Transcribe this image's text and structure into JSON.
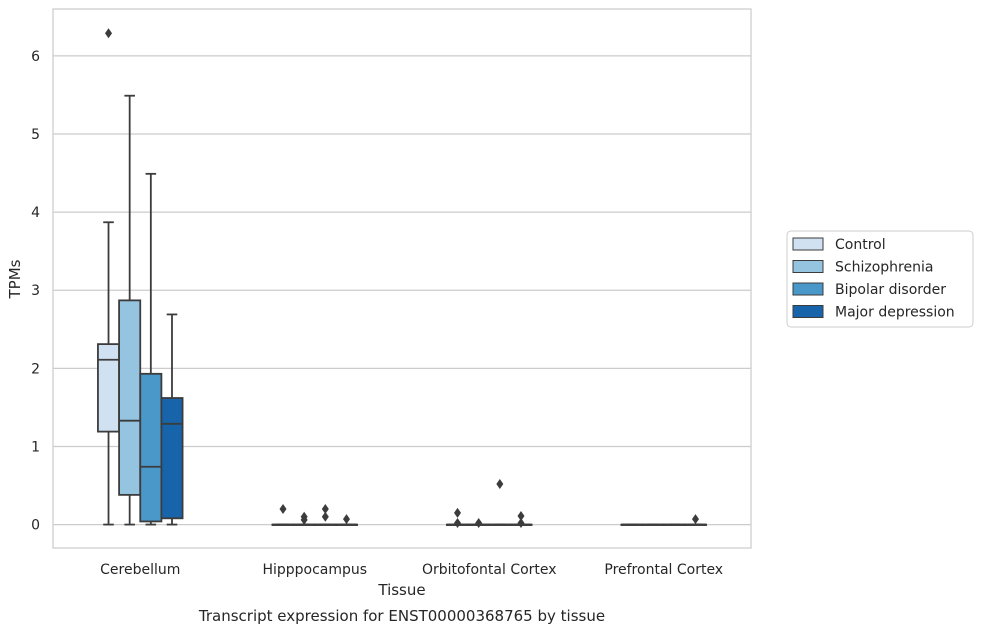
{
  "chart_data": {
    "type": "box",
    "title": "",
    "caption": "Transcript expression for ENST00000368765 by tissue",
    "xlabel": "Tissue",
    "ylabel": "TPMs",
    "ylim": [
      -0.3,
      6.6
    ],
    "yticks": [
      0,
      1,
      2,
      3,
      4,
      5,
      6
    ],
    "grid": "horizontal",
    "legend_position": "right",
    "categories": [
      "Cerebellum",
      "Hipppocampus",
      "Orbitofontal Cortex",
      "Prefrontal Cortex"
    ],
    "series": [
      {
        "name": "Control",
        "color": "#d0e1f2",
        "boxes": [
          {
            "whislo": 0.0,
            "q1": 1.19,
            "med": 2.11,
            "q3": 2.31,
            "whishi": 3.87,
            "fliers": [
              6.29
            ]
          },
          {
            "whislo": 0.0,
            "q1": 0.0,
            "med": 0.0,
            "q3": 0.0,
            "whishi": 0.0,
            "fliers": [
              0.2
            ]
          },
          {
            "whislo": 0.0,
            "q1": 0.0,
            "med": 0.0,
            "q3": 0.0,
            "whishi": 0.0,
            "fliers": [
              0.15,
              0.02
            ]
          },
          {
            "whislo": 0.0,
            "q1": 0.0,
            "med": 0.0,
            "q3": 0.0,
            "whishi": 0.0,
            "fliers": []
          }
        ]
      },
      {
        "name": "Schizophrenia",
        "color": "#94c4df",
        "boxes": [
          {
            "whislo": 0.0,
            "q1": 0.38,
            "med": 1.33,
            "q3": 2.87,
            "whishi": 5.49,
            "fliers": []
          },
          {
            "whislo": 0.0,
            "q1": 0.0,
            "med": 0.0,
            "q3": 0.0,
            "whishi": 0.0,
            "fliers": [
              0.1,
              0.06
            ]
          },
          {
            "whislo": 0.0,
            "q1": 0.0,
            "med": 0.0,
            "q3": 0.0,
            "whishi": 0.0,
            "fliers": [
              0.02
            ]
          },
          {
            "whislo": 0.0,
            "q1": 0.0,
            "med": 0.0,
            "q3": 0.0,
            "whishi": 0.0,
            "fliers": []
          }
        ]
      },
      {
        "name": "Bipolar disorder",
        "color": "#4a98c9",
        "boxes": [
          {
            "whislo": 0.0,
            "q1": 0.04,
            "med": 0.74,
            "q3": 1.93,
            "whishi": 4.49,
            "fliers": []
          },
          {
            "whislo": 0.0,
            "q1": 0.0,
            "med": 0.0,
            "q3": 0.0,
            "whishi": 0.0,
            "fliers": [
              0.2,
              0.1
            ]
          },
          {
            "whislo": 0.0,
            "q1": 0.0,
            "med": 0.0,
            "q3": 0.0,
            "whishi": 0.0,
            "fliers": [
              0.52
            ]
          },
          {
            "whislo": 0.0,
            "q1": 0.0,
            "med": 0.0,
            "q3": 0.0,
            "whishi": 0.0,
            "fliers": []
          }
        ]
      },
      {
        "name": "Major depression",
        "color": "#1764ab",
        "boxes": [
          {
            "whislo": 0.0,
            "q1": 0.08,
            "med": 1.29,
            "q3": 1.62,
            "whishi": 2.69,
            "fliers": []
          },
          {
            "whislo": 0.0,
            "q1": 0.0,
            "med": 0.0,
            "q3": 0.0,
            "whishi": 0.0,
            "fliers": [
              0.07
            ]
          },
          {
            "whislo": 0.0,
            "q1": 0.0,
            "med": 0.0,
            "q3": 0.0,
            "whishi": 0.0,
            "fliers": [
              0.11,
              0.02
            ]
          },
          {
            "whislo": 0.0,
            "q1": 0.0,
            "med": 0.0,
            "q3": 0.0,
            "whishi": 0.0,
            "fliers": [
              0.07
            ]
          }
        ]
      }
    ]
  }
}
